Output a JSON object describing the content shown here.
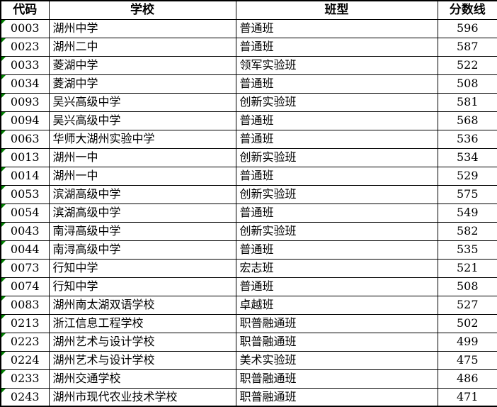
{
  "colors": {
    "background": "#ffffff",
    "text": "#000000",
    "border": "#000000",
    "flag_triangle": "#008000"
  },
  "icons": {
    "cell_flag": "green-triangle-icon"
  },
  "chart_data": {
    "type": "table",
    "title": "",
    "columns": [
      "代码",
      "学校",
      "班型",
      "分数线"
    ],
    "rows": [
      [
        "0003",
        "湖州中学",
        "普通班",
        596
      ],
      [
        "0023",
        "湖州二中",
        "普通班",
        587
      ],
      [
        "0033",
        "菱湖中学",
        "领军实验班",
        522
      ],
      [
        "0034",
        "菱湖中学",
        "普通班",
        508
      ],
      [
        "0093",
        "吴兴高级中学",
        "创新实验班",
        581
      ],
      [
        "0094",
        "吴兴高级中学",
        "普通班",
        568
      ],
      [
        "0063",
        "华师大湖州实验中学",
        "普通班",
        536
      ],
      [
        "0013",
        "湖州一中",
        "创新实验班",
        534
      ],
      [
        "0014",
        "湖州一中",
        "普通班",
        529
      ],
      [
        "0053",
        "滨湖高级中学",
        "创新实验班",
        575
      ],
      [
        "0054",
        "滨湖高级中学",
        "普通班",
        549
      ],
      [
        "0043",
        "南浔高级中学",
        "创新实验班",
        582
      ],
      [
        "0044",
        "南浔高级中学",
        "普通班",
        535
      ],
      [
        "0073",
        "行知中学",
        "宏志班",
        521
      ],
      [
        "0074",
        "行知中学",
        "普通班",
        508
      ],
      [
        "0083",
        "湖州南太湖双语学校",
        "卓越班",
        527
      ],
      [
        "0213",
        "浙江信息工程学校",
        "职普融通班",
        502
      ],
      [
        "0223",
        "湖州艺术与设计学校",
        "职普融通班",
        499
      ],
      [
        "0224",
        "湖州艺术与设计学校",
        "美术实验班",
        475
      ],
      [
        "0233",
        "湖州交通学校",
        "职普融通班",
        486
      ],
      [
        "0243",
        "湖州市现代农业技术学校",
        "职普融通班",
        471
      ]
    ]
  }
}
